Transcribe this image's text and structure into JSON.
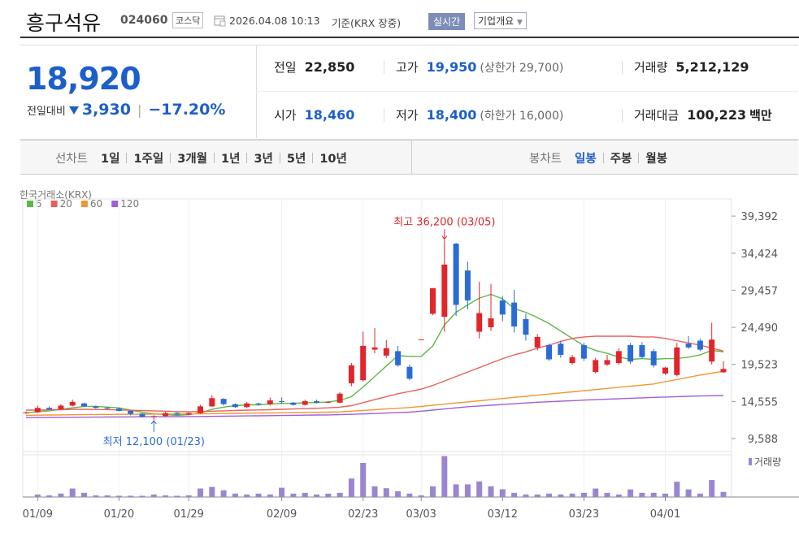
{
  "header": {
    "name": "흥구석유",
    "code": "024060",
    "market": "코스닥",
    "datetime": "2026.04.08 10:13",
    "basis": "기준(KRX 장중)",
    "realtime": "실시간",
    "company": "기업개요"
  },
  "quote": {
    "price": "18,920",
    "change_label": "전일대비",
    "change": "3,930",
    "change_pct": "−17.20%"
  },
  "stats": [
    {
      "label": "전일",
      "value": "22,850"
    },
    {
      "label": "고가",
      "value": "19,950",
      "note": "(상한가 29,700)"
    },
    {
      "label": "거래량",
      "value": "5,212,129"
    },
    {
      "label": "시가",
      "value": "18,460"
    },
    {
      "label": "저가",
      "value": "18,400",
      "note": "(하한가 16,000)"
    },
    {
      "label": "거래대금",
      "value": "100,223",
      "unit": "백만"
    }
  ],
  "line_tabs": {
    "label": "선차트",
    "items": [
      "1일",
      "1주일",
      "3개월",
      "1년",
      "3년",
      "5년",
      "10년"
    ]
  },
  "candle_tabs": {
    "label": "봉차트",
    "items": [
      "일봉",
      "주봉",
      "월봉"
    ],
    "active": 0
  },
  "chart_data": {
    "type": "candlestick",
    "source": "한국거래소(KRX)",
    "categories": [
      null,
      "01/09",
      null,
      null,
      null,
      null,
      null,
      null,
      "01/20",
      null,
      null,
      null,
      null,
      null,
      "01/29",
      null,
      null,
      null,
      null,
      null,
      null,
      null,
      "02/09",
      null,
      null,
      null,
      null,
      null,
      null,
      "02/23",
      null,
      null,
      null,
      null,
      "03/03",
      null,
      null,
      null,
      null,
      null,
      null,
      "03/12",
      null,
      null,
      null,
      null,
      null,
      null,
      "03/23",
      null,
      null,
      null,
      null,
      null,
      null,
      "04/01",
      null,
      null,
      null,
      null,
      null
    ],
    "open": [
      13000,
      13100,
      13700,
      13500,
      14000,
      14300,
      13900,
      13700,
      13600,
      13300,
      12900,
      12500,
      12600,
      13000,
      12800,
      13000,
      13900,
      14900,
      14200,
      13800,
      14300,
      14200,
      14600,
      14400,
      14100,
      14600,
      14400,
      14400,
      17000,
      17400,
      21500,
      20700,
      21300,
      19200,
      22880,
      26300,
      25900,
      35700,
      32100,
      23900,
      24500,
      28100,
      27800,
      25600,
      21800,
      22100,
      22300,
      19700,
      22100,
      18500,
      19500,
      19700,
      22100,
      22100,
      21300,
      18300,
      18100,
      22300,
      22700,
      19900,
      18460
    ],
    "high": [
      13200,
      14000,
      13900,
      14200,
      14800,
      14400,
      14000,
      13800,
      13700,
      13400,
      13000,
      12700,
      13200,
      13100,
      13100,
      14100,
      15400,
      15000,
      14300,
      14500,
      14400,
      15100,
      15100,
      14500,
      14800,
      14800,
      14600,
      15800,
      19700,
      23900,
      24400,
      22800,
      22000,
      19500,
      22880,
      29740,
      36200,
      35800,
      33300,
      30600,
      30300,
      28700,
      29500,
      26300,
      23600,
      22300,
      22700,
      20800,
      22400,
      20400,
      20800,
      21700,
      22400,
      22500,
      21600,
      19200,
      22400,
      23300,
      23000,
      25100,
      19950
    ],
    "low": [
      12900,
      13000,
      13400,
      13400,
      13900,
      13800,
      13600,
      13500,
      13200,
      12700,
      12400,
      12100,
      12500,
      12700,
      12700,
      12900,
      13800,
      14000,
      13700,
      13700,
      14000,
      14000,
      14200,
      14000,
      14000,
      14300,
      14300,
      14300,
      16600,
      17200,
      21000,
      20400,
      19200,
      17400,
      22880,
      26100,
      23900,
      26000,
      26900,
      23000,
      24000,
      25300,
      23800,
      22700,
      21400,
      20000,
      20400,
      19500,
      20000,
      18300,
      19300,
      19500,
      19600,
      20300,
      19100,
      18100,
      17900,
      21600,
      21300,
      19500,
      18400
    ],
    "close": [
      13100,
      13700,
      13500,
      14000,
      14500,
      13900,
      13700,
      13600,
      13300,
      12900,
      12500,
      12600,
      13000,
      12800,
      13000,
      13900,
      15000,
      14200,
      13800,
      14300,
      14200,
      14700,
      14500,
      14100,
      14600,
      14400,
      14500,
      15600,
      19400,
      22000,
      21800,
      21700,
      19400,
      17600,
      22880,
      29740,
      32900,
      27500,
      28100,
      26400,
      25700,
      26200,
      24600,
      23500,
      23200,
      20200,
      20800,
      20500,
      20300,
      20100,
      20100,
      21300,
      19900,
      20500,
      19400,
      19100,
      21800,
      21800,
      21500,
      22850,
      18920
    ],
    "volume": [
      500000,
      2600000,
      1700000,
      3500000,
      8700000,
      4300000,
      1700000,
      1700000,
      1300000,
      1300000,
      1300000,
      2600000,
      1700000,
      1300000,
      1700000,
      8700000,
      10400000,
      6900000,
      3500000,
      2600000,
      3500000,
      2600000,
      9500000,
      3500000,
      4300000,
      2600000,
      3500000,
      4300000,
      19000000,
      35000000,
      11000000,
      9000000,
      6000000,
      3500000,
      1700000,
      11000000,
      42000000,
      13000000,
      13000000,
      16000000,
      11000000,
      8000000,
      4300000,
      2600000,
      2600000,
      3500000,
      2600000,
      3500000,
      4300000,
      8700000,
      4300000,
      2600000,
      7800000,
      4300000,
      4300000,
      3500000,
      15700000,
      7800000,
      3500000,
      17400000,
      5212129
    ],
    "volume_label": "거래량",
    "volume_color": "#9a86d0",
    "volume_ylim": [
      0,
      45000000
    ],
    "up_color": "#e0262b",
    "down_color": "#2a6cd6",
    "ma": [
      {
        "name": "5",
        "color": "#5cb946",
        "values": [
          13000,
          13200,
          13300,
          13500,
          13700,
          13900,
          13900,
          13800,
          13700,
          13400,
          13100,
          12900,
          12800,
          12700,
          12800,
          13000,
          13500,
          13800,
          14000,
          14100,
          14100,
          14200,
          14300,
          14300,
          14400,
          14400,
          14500,
          14700,
          15200,
          16500,
          17900,
          19300,
          20700,
          20600,
          20600,
          22000,
          24800,
          26500,
          27500,
          28400,
          28900,
          28300,
          27000,
          26500,
          25800,
          25000,
          24000,
          23000,
          22000,
          21400,
          21000,
          20500,
          20200,
          20300,
          20200,
          20300,
          20300,
          20500,
          20800,
          21400,
          21200
        ]
      },
      {
        "name": "20",
        "color": "#e9605b",
        "values": [
          13400,
          13400,
          13450,
          13450,
          13500,
          13500,
          13480,
          13460,
          13420,
          13380,
          13340,
          13300,
          13250,
          13200,
          13180,
          13200,
          13250,
          13300,
          13350,
          13400,
          13420,
          13450,
          13500,
          13550,
          13600,
          13650,
          13700,
          13800,
          14000,
          14400,
          14800,
          15200,
          15600,
          15900,
          16200,
          16700,
          17300,
          17900,
          18500,
          19100,
          19700,
          20300,
          20800,
          21200,
          21700,
          22100,
          22600,
          23000,
          23200,
          23300,
          23300,
          23300,
          23300,
          23200,
          23200,
          23000,
          22700,
          22400,
          22100,
          21700,
          21300
        ]
      },
      {
        "name": "60",
        "color": "#f0962f",
        "values": [
          12700,
          12720,
          12740,
          12760,
          12780,
          12800,
          12810,
          12820,
          12830,
          12840,
          12850,
          12860,
          12870,
          12880,
          12890,
          12900,
          12920,
          12940,
          12960,
          12980,
          13000,
          13020,
          13040,
          13060,
          13080,
          13100,
          13120,
          13160,
          13250,
          13350,
          13450,
          13550,
          13650,
          13750,
          13900,
          14050,
          14200,
          14350,
          14500,
          14650,
          14800,
          14950,
          15100,
          15250,
          15400,
          15550,
          15700,
          15850,
          16000,
          16150,
          16300,
          16450,
          16600,
          16750,
          16900,
          17200,
          17500,
          17800,
          18100,
          18350,
          18600
        ]
      },
      {
        "name": "120",
        "color": "#a05fd8",
        "values": [
          12400,
          12410,
          12420,
          12430,
          12440,
          12450,
          12460,
          12470,
          12480,
          12490,
          12500,
          12510,
          12520,
          12530,
          12540,
          12550,
          12560,
          12580,
          12600,
          12620,
          12640,
          12660,
          12680,
          12700,
          12720,
          12740,
          12760,
          12790,
          12830,
          12880,
          12940,
          13000,
          13060,
          13120,
          13250,
          13400,
          13550,
          13700,
          13850,
          13950,
          14050,
          14150,
          14250,
          14350,
          14450,
          14520,
          14590,
          14660,
          14730,
          14800,
          14860,
          14920,
          14980,
          15040,
          15100,
          15150,
          15200,
          15250,
          15290,
          15320,
          15350
        ]
      }
    ],
    "ylim": [
      8500,
      40600
    ],
    "yticks": [
      {
        "value": 39392,
        "label": "39,392"
      },
      {
        "value": 34424,
        "label": "34,424"
      },
      {
        "value": 29457,
        "label": "29,457"
      },
      {
        "value": 24490,
        "label": "24,490"
      },
      {
        "value": 19523,
        "label": "19,523"
      },
      {
        "value": 14555,
        "label": "14,555"
      },
      {
        "value": 9588,
        "label": "9,588"
      }
    ],
    "annotations": [
      {
        "text": "최고 36,200 (03/05)",
        "value": 36200,
        "kind": "high",
        "color": "#e0262b"
      },
      {
        "text": "최저 12,100 (01/23)",
        "value": 12100,
        "kind": "low",
        "color": "#2a6cd6"
      }
    ],
    "grid": true
  }
}
